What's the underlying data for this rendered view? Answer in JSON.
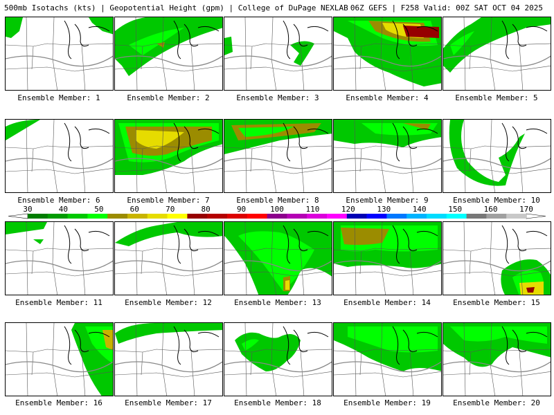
{
  "header": {
    "left": "500mb Isotachs (kts) | Geopotential Height (gpm) | College of DuPage NEXLAB",
    "right": "06Z GEFS | F258 Valid: 00Z SAT OCT 04 2025"
  },
  "colorbar": {
    "ticks": [
      "30",
      "40",
      "50",
      "60",
      "70",
      "80",
      "90",
      "100",
      "110",
      "120",
      "130",
      "140",
      "150",
      "160",
      "170"
    ],
    "colors": [
      "#007d00",
      "#009b00",
      "#00c800",
      "#00ff00",
      "#9b8c00",
      "#c8b400",
      "#e6dc00",
      "#ffff00",
      "#960000",
      "#b40000",
      "#dc0000",
      "#ff0000",
      "#8c008c",
      "#b400b4",
      "#dc00dc",
      "#ff00ff",
      "#0000b4",
      "#0000ff",
      "#0078ff",
      "#00b4ff",
      "#00dcff",
      "#00ffff",
      "#787878",
      "#a0a0a0",
      "#c8c8c8"
    ]
  },
  "panels": [
    {
      "label": "Ensemble Member: 1"
    },
    {
      "label": "Ensemble Member: 2"
    },
    {
      "label": "Ensemble Member: 3"
    },
    {
      "label": "Ensemble Member: 4"
    },
    {
      "label": "Ensemble Member: 5"
    },
    {
      "label": "Ensemble Member: 6"
    },
    {
      "label": "Ensemble Member: 7"
    },
    {
      "label": "Ensemble Member: 8"
    },
    {
      "label": "Ensemble Member: 9"
    },
    {
      "label": "Ensemble Member: 10"
    },
    {
      "label": "Ensemble Member: 11"
    },
    {
      "label": "Ensemble Member: 12"
    },
    {
      "label": "Ensemble Member: 13"
    },
    {
      "label": "Ensemble Member: 14"
    },
    {
      "label": "Ensemble Member: 15"
    },
    {
      "label": "Ensemble Member: 16"
    },
    {
      "label": "Ensemble Member: 17"
    },
    {
      "label": "Ensemble Member: 18"
    },
    {
      "label": "Ensemble Member: 19"
    },
    {
      "label": "Ensemble Member: 20"
    }
  ]
}
